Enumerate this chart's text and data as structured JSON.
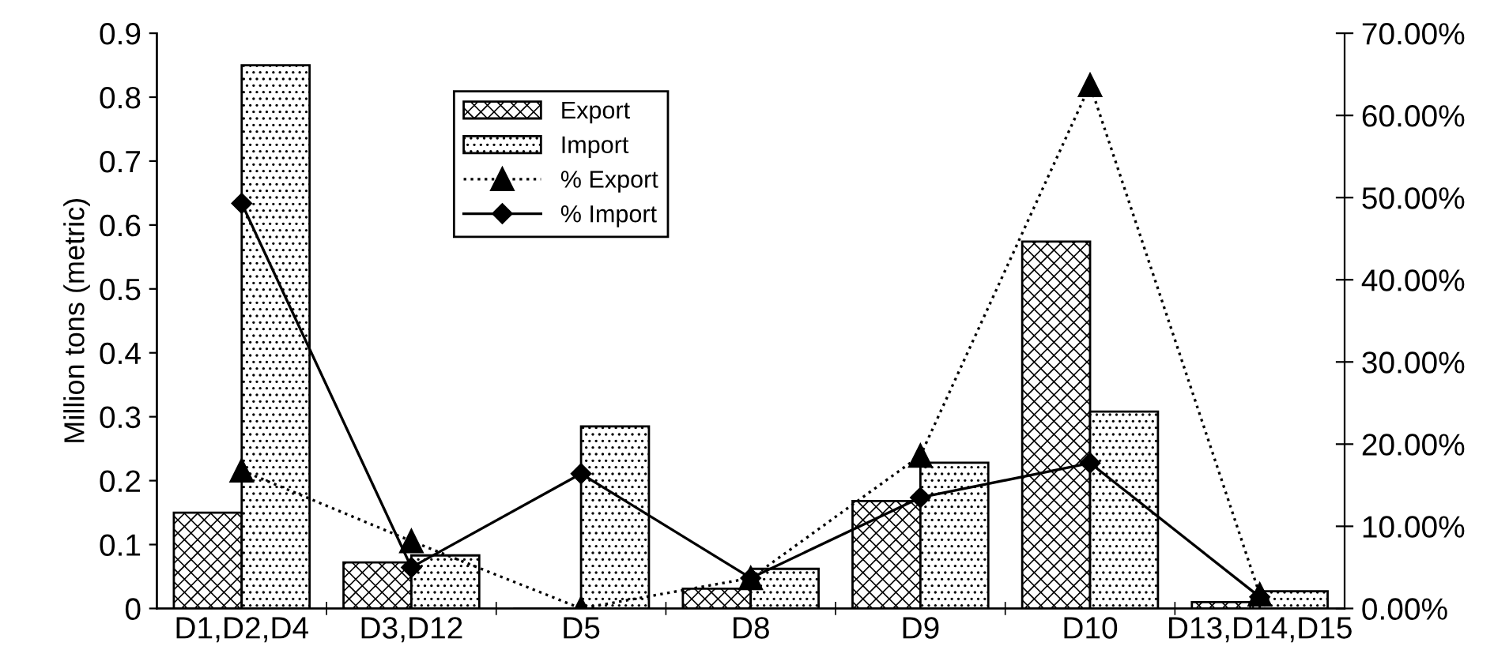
{
  "chart_data": {
    "type": "bar",
    "ylabel": "Million tons (metric)",
    "categories": [
      "D1,D2,D4",
      "D3,D12",
      "D5",
      "D8",
      "D9",
      "D10",
      "D13,D14,D15"
    ],
    "series": [
      {
        "name": "Export",
        "color": "#000000",
        "values": [
          0.15,
          0.072,
          0,
          0.031,
          0.168,
          0.574,
          0.01
        ]
      },
      {
        "name": "Import",
        "color": "#000000",
        "values": [
          0.85,
          0.083,
          0.285,
          0.062,
          0.228,
          0.308,
          0.027
        ]
      },
      {
        "name": "% Export",
        "type": "line",
        "axis": "y2",
        "color": "#000000",
        "marker": "triangle",
        "line_style": "dotted",
        "values": [
          16.8,
          8.2,
          0,
          3.7,
          18.6,
          63.7,
          1.7
        ]
      },
      {
        "name": "% Import",
        "type": "line",
        "axis": "y2",
        "color": "#000000",
        "marker": "diamond",
        "line_style": "solid",
        "values": [
          49.3,
          5.0,
          16.4,
          3.7,
          13.5,
          17.7,
          1.4
        ]
      }
    ],
    "ylim": [
      0,
      0.9
    ],
    "yticks": [
      0,
      0.1,
      0.2,
      0.3,
      0.4,
      0.5,
      0.6,
      0.7,
      0.8,
      0.9
    ],
    "y2lim": [
      0,
      70
    ],
    "y2ticks": [
      {
        "value": 0,
        "label": "0.00%"
      },
      {
        "value": 10,
        "label": "10.00%"
      },
      {
        "value": 20,
        "label": "20.00%"
      },
      {
        "value": 30,
        "label": "30.00%"
      },
      {
        "value": 40,
        "label": "40.00%"
      },
      {
        "value": 50,
        "label": "50.00%"
      },
      {
        "value": 60,
        "label": "60.00%"
      },
      {
        "value": 70,
        "label": "70.00%"
      }
    ],
    "grid": false,
    "legend": "top left"
  }
}
